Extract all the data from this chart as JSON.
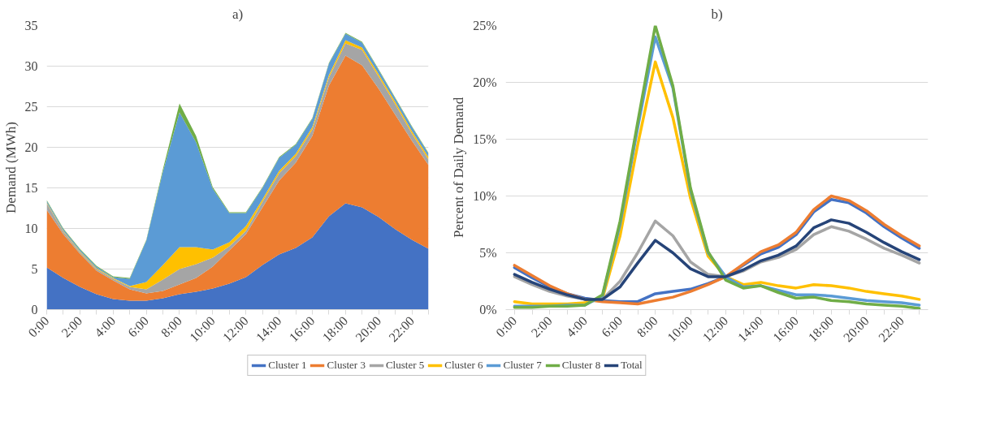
{
  "chart_data": [
    {
      "type": "area",
      "stacked": true,
      "title": "a)",
      "ylabel": "Demand (MWh)",
      "categories": [
        "0:00",
        null,
        "2:00",
        null,
        "4:00",
        null,
        "6:00",
        null,
        "8:00",
        null,
        "10:00",
        null,
        "12:00",
        null,
        "14:00",
        null,
        "16:00",
        null,
        "18:00",
        null,
        "20:00",
        null,
        "22:00",
        null
      ],
      "ylim": [
        0,
        35
      ],
      "yticks": [
        0,
        5,
        10,
        15,
        20,
        25,
        30,
        35
      ],
      "grid": "y",
      "legend": false,
      "series": [
        {
          "color": "#4472c4",
          "values": [
            5.2,
            3.9,
            2.8,
            1.9,
            1.3,
            1.1,
            1.1,
            1.4,
            1.9,
            2.2,
            2.6,
            3.2,
            4.0,
            5.5,
            6.8,
            7.6,
            8.9,
            11.5,
            13.1,
            12.6,
            11.4,
            9.9,
            8.6,
            7.5
          ]
        },
        {
          "color": "#ed7d31",
          "values": [
            7.1,
            5.4,
            4.1,
            2.9,
            2.3,
            1.4,
            0.9,
            0.9,
            1.2,
            1.7,
            2.7,
            4.1,
            5.3,
            7.1,
            9.1,
            10.5,
            12.5,
            16.1,
            18.2,
            17.5,
            15.8,
            14.1,
            12.2,
            10.3
          ]
        },
        {
          "color": "#a5a5a5",
          "values": [
            0.8,
            0.3,
            0.2,
            0.2,
            0.2,
            0.3,
            0.5,
            1.4,
            1.9,
            1.7,
            1.1,
            0.5,
            0.4,
            0.7,
            0.9,
            0.8,
            0.8,
            1.0,
            1.5,
            1.9,
            1.5,
            1.3,
            0.9,
            0.7
          ]
        },
        {
          "color": "#ffc000",
          "values": [
            0.1,
            0.1,
            0.1,
            0.1,
            0.1,
            0.1,
            0.9,
            1.8,
            2.7,
            2.1,
            1.0,
            0.5,
            0.6,
            0.3,
            0.3,
            0.3,
            0.3,
            0.3,
            0.4,
            0.3,
            0.3,
            0.3,
            0.3,
            0.3
          ]
        },
        {
          "color": "#5b9bd5",
          "values": [
            0.2,
            0.2,
            0.2,
            0.2,
            0.1,
            0.9,
            5.1,
            11.5,
            16.6,
            12.9,
            7.5,
            3.6,
            1.6,
            1.4,
            1.6,
            1.1,
            1.0,
            1.4,
            0.8,
            0.6,
            0.5,
            0.4,
            0.5,
            0.4
          ]
        },
        {
          "color": "#70ad47",
          "values": [
            0.1,
            0.1,
            0.1,
            0.1,
            0.1,
            0.1,
            0.1,
            0.3,
            1.1,
            0.8,
            0.2,
            0.1,
            0.1,
            0.1,
            0.1,
            0.1,
            0.1,
            0.1,
            0.1,
            0.1,
            0.1,
            0.1,
            0.1,
            0.1
          ]
        }
      ]
    },
    {
      "type": "line",
      "title": "b)",
      "ylabel": "Percent of Daily Demand",
      "categories": [
        "0:00",
        null,
        "2:00",
        null,
        "4:00",
        null,
        "6:00",
        null,
        "8:00",
        null,
        "10:00",
        null,
        "12:00",
        null,
        "14:00",
        null,
        "16:00",
        null,
        "18:00",
        null,
        "20:00",
        null,
        "22:00",
        null
      ],
      "ylim": [
        0,
        25
      ],
      "yticks": [
        {
          "value": 0,
          "label": "0%"
        },
        {
          "value": 5,
          "label": "5%"
        },
        {
          "value": 10,
          "label": "10%"
        },
        {
          "value": 15,
          "label": "15%"
        },
        {
          "value": 20,
          "label": "20%"
        },
        {
          "value": 25,
          "label": "25%"
        }
      ],
      "grid": "y",
      "legend": "bottom",
      "line_style": "solid",
      "marker": "none",
      "series": [
        {
          "name": "Cluster 1",
          "color": "#4472c4",
          "values": [
            3.7,
            2.8,
            2.0,
            1.4,
            1.0,
            0.8,
            0.7,
            0.7,
            1.4,
            1.6,
            1.8,
            2.3,
            2.9,
            3.9,
            4.9,
            5.5,
            6.6,
            8.6,
            9.7,
            9.4,
            8.5,
            7.3,
            6.3,
            5.4
          ]
        },
        {
          "name": "Cluster 3",
          "color": "#ed7d31",
          "values": [
            3.9,
            3.0,
            2.1,
            1.4,
            0.9,
            0.7,
            0.6,
            0.5,
            0.8,
            1.1,
            1.6,
            2.2,
            2.9,
            4.0,
            5.1,
            5.7,
            6.8,
            8.8,
            10.0,
            9.6,
            8.7,
            7.5,
            6.5,
            5.6
          ]
        },
        {
          "name": "Cluster 5",
          "color": "#a5a5a5",
          "values": [
            2.9,
            2.2,
            1.6,
            1.2,
            0.9,
            0.9,
            2.5,
            5.0,
            7.8,
            6.5,
            4.2,
            3.1,
            2.9,
            3.4,
            4.2,
            4.6,
            5.3,
            6.6,
            7.3,
            6.9,
            6.2,
            5.4,
            4.8,
            4.1
          ]
        },
        {
          "name": "Cluster 6",
          "color": "#ffc000",
          "values": [
            0.7,
            0.5,
            0.5,
            0.5,
            0.6,
            1.0,
            6.5,
            14.5,
            21.8,
            16.9,
            9.8,
            4.7,
            2.9,
            2.2,
            2.4,
            2.1,
            1.9,
            2.2,
            2.1,
            1.9,
            1.6,
            1.4,
            1.2,
            0.9
          ]
        },
        {
          "name": "Cluster 7",
          "color": "#5b9bd5",
          "values": [
            0.3,
            0.3,
            0.3,
            0.4,
            0.4,
            1.2,
            7.5,
            16.0,
            24.0,
            19.5,
            10.5,
            5.0,
            2.9,
            2.0,
            2.1,
            1.7,
            1.3,
            1.3,
            1.2,
            1.0,
            0.8,
            0.7,
            0.6,
            0.4
          ]
        },
        {
          "name": "Cluster 8",
          "color": "#70ad47",
          "values": [
            0.2,
            0.2,
            0.3,
            0.3,
            0.4,
            1.3,
            7.8,
            16.5,
            25.0,
            19.7,
            10.7,
            5.1,
            2.6,
            1.9,
            2.1,
            1.5,
            1.0,
            1.1,
            0.8,
            0.7,
            0.5,
            0.4,
            0.3,
            0.1
          ]
        },
        {
          "name": "Total",
          "color": "#264478",
          "values": [
            3.1,
            2.4,
            1.8,
            1.3,
            0.9,
            0.9,
            2.0,
            4.1,
            6.1,
            5.0,
            3.6,
            2.9,
            2.9,
            3.5,
            4.3,
            4.8,
            5.6,
            7.2,
            7.9,
            7.6,
            6.8,
            5.9,
            5.1,
            4.4
          ]
        }
      ]
    }
  ]
}
